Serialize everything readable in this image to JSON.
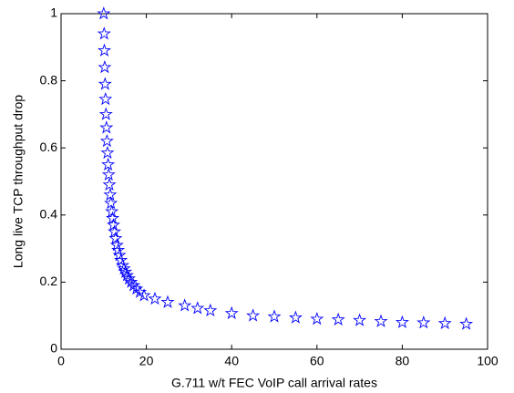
{
  "chart_data": {
    "type": "scatter",
    "xlabel": "G.711  w/t FEC VoIP call arrival rates",
    "ylabel": "Long live TCP throughput drop",
    "x": [
      10.0,
      10.1,
      10.15,
      10.23,
      10.32,
      10.42,
      10.53,
      10.64,
      10.76,
      10.89,
      11.03,
      11.17,
      11.33,
      11.52,
      11.7,
      11.9,
      12.08,
      12.29,
      12.52,
      12.79,
      13.1,
      13.37,
      13.68,
      14.03,
      14.44,
      14.75,
      15.09,
      15.48,
      15.92,
      16.43,
      17.01,
      17.69,
      18.49,
      19.45,
      22,
      25,
      29,
      32,
      35,
      40,
      45,
      50,
      55,
      60,
      65,
      70,
      75,
      80,
      85,
      90,
      95
    ],
    "values": [
      1,
      0.94,
      0.89,
      0.84,
      0.79,
      0.745,
      0.7,
      0.66,
      0.62,
      0.585,
      0.55,
      0.52,
      0.49,
      0.46,
      0.435,
      0.41,
      0.39,
      0.37,
      0.35,
      0.33,
      0.31,
      0.295,
      0.28,
      0.265,
      0.25,
      0.24,
      0.23,
      0.22,
      0.21,
      0.2,
      0.19,
      0.18,
      0.17,
      0.16,
      0.15,
      0.14,
      0.13,
      0.122,
      0.115,
      0.107,
      0.1,
      0.097,
      0.094,
      0.09,
      0.088,
      0.086,
      0.083,
      0.08,
      0.079,
      0.077,
      0.075
    ],
    "color": "#0000ff",
    "xlim": [
      0,
      100
    ],
    "xticks": [
      0,
      20,
      40,
      60,
      80,
      100
    ],
    "ylim": [
      0,
      1
    ],
    "yticks": [
      0,
      0.2,
      0.4,
      0.6,
      0.8,
      1
    ]
  }
}
